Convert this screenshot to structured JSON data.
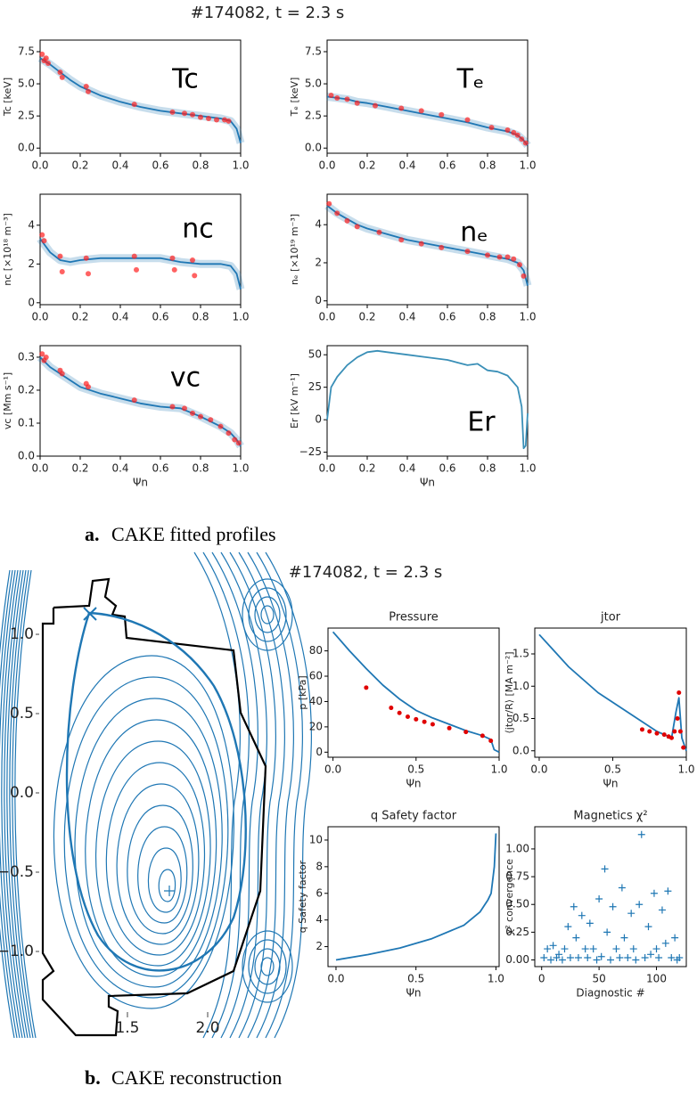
{
  "panels": [
    {
      "title": "#174082, t = 2.3 s",
      "label": "a.",
      "caption": "CAKE fitted profiles"
    },
    {
      "title": "#174082, t = 2.3 s",
      "label": "b.",
      "caption": "CAKE reconstruction"
    }
  ],
  "chart_data": [
    {
      "type": "line",
      "ylabel": "Tc [keV]",
      "annotation": "Tc",
      "xlim": [
        0,
        1
      ],
      "ylim": [
        -0.4,
        8.4
      ],
      "xticks": [
        {
          "value": 0,
          "label": "0.0"
        },
        0.2,
        0.4,
        0.6,
        0.8,
        {
          "value": 1,
          "label": "1.0"
        }
      ],
      "yticks": [
        {
          "value": 0,
          "label": "0.0"
        },
        2.5,
        {
          "value": 5,
          "label": "5.0"
        },
        7.5
      ],
      "series": [
        {
          "mode": "line",
          "color": "#1f77b4",
          "x": [
            0,
            0.05,
            0.1,
            0.15,
            0.2,
            0.3,
            0.4,
            0.5,
            0.6,
            0.7,
            0.8,
            0.9,
            0.95,
            0.98,
            1.0
          ],
          "values": [
            7.0,
            6.5,
            5.9,
            5.3,
            4.8,
            4.1,
            3.6,
            3.2,
            2.9,
            2.7,
            2.5,
            2.3,
            2.1,
            1.5,
            0.4
          ]
        },
        {
          "mode": "markers",
          "color": "#ff2020",
          "x": [
            0.01,
            0.02,
            0.03,
            0.04,
            0.1,
            0.11,
            0.23,
            0.24,
            0.47,
            0.66,
            0.72,
            0.76,
            0.8,
            0.84,
            0.88,
            0.92,
            0.94
          ],
          "values": [
            7.3,
            6.8,
            7.0,
            6.6,
            5.9,
            5.5,
            4.8,
            4.4,
            3.4,
            2.8,
            2.7,
            2.6,
            2.4,
            2.3,
            2.2,
            2.2,
            2.1
          ]
        }
      ]
    },
    {
      "type": "line",
      "ylabel": "Tₑ [keV]",
      "annotation": "Tₑ",
      "xlim": [
        0,
        1
      ],
      "ylim": [
        -0.4,
        8.4
      ],
      "xticks": [
        {
          "value": 0,
          "label": "0.0"
        },
        0.2,
        0.4,
        0.6,
        0.8,
        {
          "value": 1,
          "label": "1.0"
        }
      ],
      "yticks": [
        {
          "value": 0,
          "label": "0.0"
        },
        2.5,
        {
          "value": 5,
          "label": "5.0"
        },
        7.5
      ],
      "series": [
        {
          "mode": "line",
          "color": "#1f77b4",
          "x": [
            0,
            0.05,
            0.1,
            0.15,
            0.2,
            0.3,
            0.4,
            0.5,
            0.6,
            0.7,
            0.8,
            0.9,
            0.95,
            0.98,
            1.0
          ],
          "values": [
            4.0,
            3.9,
            3.8,
            3.6,
            3.5,
            3.2,
            2.9,
            2.6,
            2.3,
            2.0,
            1.6,
            1.3,
            1.0,
            0.6,
            0.2
          ]
        },
        {
          "mode": "markers",
          "color": "#ff2020",
          "x": [
            0.02,
            0.05,
            0.1,
            0.15,
            0.24,
            0.37,
            0.47,
            0.57,
            0.7,
            0.82,
            0.9,
            0.93,
            0.95,
            0.97,
            0.99
          ],
          "values": [
            4.1,
            3.9,
            3.8,
            3.5,
            3.3,
            3.1,
            2.9,
            2.6,
            2.2,
            1.6,
            1.4,
            1.2,
            1.0,
            0.7,
            0.4
          ]
        }
      ]
    },
    {
      "type": "line",
      "ylabel": "nc [×10¹⁸ m⁻³]",
      "annotation": "nc",
      "xlim": [
        0,
        1
      ],
      "ylim": [
        -0.1,
        5.6
      ],
      "xticks": [
        {
          "value": 0,
          "label": "0.0"
        },
        0.2,
        0.4,
        0.6,
        0.8,
        {
          "value": 1,
          "label": "1.0"
        }
      ],
      "yticks": [
        0,
        2,
        4
      ],
      "series": [
        {
          "mode": "line",
          "color": "#1f77b4",
          "x": [
            0,
            0.05,
            0.1,
            0.15,
            0.2,
            0.3,
            0.4,
            0.5,
            0.6,
            0.7,
            0.8,
            0.9,
            0.95,
            0.98,
            1.0
          ],
          "values": [
            3.3,
            2.6,
            2.2,
            2.1,
            2.2,
            2.3,
            2.3,
            2.3,
            2.3,
            2.1,
            2.0,
            2.0,
            1.9,
            1.5,
            0.7
          ]
        },
        {
          "mode": "markers",
          "color": "#ff2020",
          "x": [
            0.01,
            0.02,
            0.1,
            0.11,
            0.23,
            0.24,
            0.47,
            0.48,
            0.66,
            0.67,
            0.76,
            0.77
          ],
          "values": [
            3.5,
            3.2,
            2.4,
            1.6,
            2.3,
            1.5,
            2.4,
            1.7,
            2.3,
            1.7,
            2.2,
            1.4
          ]
        }
      ]
    },
    {
      "type": "line",
      "ylabel": "nₑ [×10¹⁹ m⁻³]",
      "annotation": "nₑ",
      "xlim": [
        0,
        1
      ],
      "ylim": [
        -0.2,
        5.6
      ],
      "xticks": [
        {
          "value": 0,
          "label": "0.0"
        },
        0.2,
        0.4,
        0.6,
        0.8,
        {
          "value": 1,
          "label": "1.0"
        }
      ],
      "yticks": [
        0,
        2,
        4
      ],
      "series": [
        {
          "mode": "line",
          "color": "#1f77b4",
          "x": [
            0,
            0.05,
            0.1,
            0.15,
            0.2,
            0.3,
            0.4,
            0.5,
            0.6,
            0.7,
            0.8,
            0.9,
            0.95,
            0.98,
            1.0
          ],
          "values": [
            5.0,
            4.6,
            4.3,
            4.0,
            3.8,
            3.5,
            3.2,
            3.0,
            2.8,
            2.6,
            2.4,
            2.2,
            2.0,
            1.6,
            0.8
          ]
        },
        {
          "mode": "markers",
          "color": "#ff2020",
          "x": [
            0.01,
            0.05,
            0.1,
            0.15,
            0.26,
            0.37,
            0.47,
            0.57,
            0.7,
            0.8,
            0.86,
            0.9,
            0.93,
            0.96,
            0.98
          ],
          "values": [
            5.1,
            4.6,
            4.2,
            3.9,
            3.6,
            3.2,
            3.0,
            2.8,
            2.6,
            2.4,
            2.3,
            2.3,
            2.2,
            1.9,
            1.3
          ]
        }
      ]
    },
    {
      "type": "line",
      "ylabel": "vc [Mm s⁻¹]",
      "annotation": "vc",
      "xlabel": "Ψn",
      "xlim": [
        0,
        1
      ],
      "ylim": [
        0,
        0.335
      ],
      "xticks": [
        {
          "value": 0,
          "label": "0.0"
        },
        0.2,
        0.4,
        0.6,
        0.8,
        {
          "value": 1,
          "label": "1.0"
        }
      ],
      "yticks": [
        {
          "value": 0,
          "label": "0.0"
        },
        0.1,
        0.2,
        0.3
      ],
      "series": [
        {
          "mode": "line",
          "color": "#1f77b4",
          "x": [
            0,
            0.05,
            0.1,
            0.15,
            0.2,
            0.3,
            0.4,
            0.5,
            0.6,
            0.7,
            0.8,
            0.9,
            0.95,
            0.98,
            1.0
          ],
          "values": [
            0.3,
            0.27,
            0.25,
            0.23,
            0.21,
            0.19,
            0.175,
            0.16,
            0.15,
            0.145,
            0.12,
            0.09,
            0.07,
            0.05,
            0.03
          ]
        },
        {
          "mode": "markers",
          "color": "#ff2020",
          "x": [
            0.01,
            0.02,
            0.03,
            0.1,
            0.11,
            0.23,
            0.24,
            0.47,
            0.66,
            0.72,
            0.76,
            0.8,
            0.85,
            0.9,
            0.94,
            0.97,
            0.99
          ],
          "values": [
            0.31,
            0.29,
            0.3,
            0.26,
            0.25,
            0.22,
            0.21,
            0.17,
            0.15,
            0.145,
            0.13,
            0.12,
            0.11,
            0.09,
            0.07,
            0.05,
            0.04
          ]
        }
      ]
    },
    {
      "type": "line",
      "ylabel": "Er [kV m⁻¹]",
      "annotation": "Er",
      "xlabel": "Ψn",
      "xlim": [
        0,
        1
      ],
      "ylim": [
        -28,
        57
      ],
      "xticks": [
        {
          "value": 0,
          "label": "0.0"
        },
        0.2,
        0.4,
        0.6,
        0.8,
        {
          "value": 1,
          "label": "1.0"
        }
      ],
      "yticks": [
        {
          "value": -25,
          "label": "−25"
        },
        0,
        25,
        50
      ],
      "series": [
        {
          "mode": "line",
          "color": "#3a8fb7",
          "x": [
            0,
            0.02,
            0.05,
            0.1,
            0.15,
            0.2,
            0.25,
            0.3,
            0.4,
            0.5,
            0.6,
            0.65,
            0.7,
            0.75,
            0.8,
            0.85,
            0.9,
            0.95,
            0.97,
            0.98,
            0.99,
            1.0
          ],
          "values": [
            0,
            25,
            33,
            42,
            48,
            52,
            53,
            52,
            50,
            48,
            46,
            44,
            42,
            43,
            38,
            37,
            34,
            25,
            10,
            -22,
            -20,
            5
          ]
        }
      ]
    },
    {
      "type": "line",
      "title": "Pressure",
      "ylabel": "p [kPa]",
      "xlabel": "Ψn",
      "xlim": [
        -0.03,
        1.0
      ],
      "ylim": [
        -4,
        98
      ],
      "xticks": [
        {
          "value": 0,
          "label": "0.0"
        },
        0.5,
        {
          "value": 1,
          "label": "1.0"
        }
      ],
      "yticks": [
        0,
        20,
        40,
        60,
        80
      ],
      "series": [
        {
          "mode": "line",
          "color": "#1f77b4",
          "x": [
            0,
            0.1,
            0.2,
            0.3,
            0.4,
            0.5,
            0.6,
            0.7,
            0.8,
            0.9,
            0.95,
            0.97,
            1.0
          ],
          "values": [
            95,
            80,
            66,
            53,
            42,
            33,
            27,
            22,
            17,
            13,
            10,
            2,
            0
          ]
        },
        {
          "mode": "markers",
          "color": "#e00000",
          "x": [
            0.2,
            0.35,
            0.4,
            0.45,
            0.5,
            0.55,
            0.6,
            0.7,
            0.8,
            0.9,
            0.95
          ],
          "values": [
            51,
            35,
            31,
            28,
            26,
            24,
            22,
            19,
            16,
            13,
            9
          ]
        }
      ]
    },
    {
      "type": "line",
      "title": "jtor",
      "ylabel": "⟨jtor/R⟩ [MA m⁻²]",
      "xlabel": "Ψn",
      "xlim": [
        -0.03,
        1.0
      ],
      "ylim": [
        -0.1,
        1.9
      ],
      "xticks": [
        {
          "value": 0,
          "label": "0.0"
        },
        0.5,
        {
          "value": 1,
          "label": "1.0"
        }
      ],
      "yticks": [
        {
          "value": 0,
          "label": "0.0"
        },
        0.5,
        {
          "value": 1,
          "label": "1.0"
        },
        1.5
      ],
      "series": [
        {
          "mode": "line",
          "color": "#1f77b4",
          "x": [
            0,
            0.1,
            0.2,
            0.3,
            0.4,
            0.5,
            0.6,
            0.7,
            0.8,
            0.85,
            0.9,
            0.93,
            0.95,
            0.97,
            1.0
          ],
          "values": [
            1.8,
            1.55,
            1.3,
            1.1,
            0.9,
            0.75,
            0.6,
            0.45,
            0.3,
            0.25,
            0.2,
            0.6,
            0.82,
            0.2,
            0.0
          ]
        },
        {
          "mode": "markers",
          "color": "#e00000",
          "x": [
            0.7,
            0.75,
            0.8,
            0.85,
            0.88,
            0.9,
            0.92,
            0.94,
            0.95,
            0.96,
            0.98
          ],
          "values": [
            0.33,
            0.3,
            0.27,
            0.25,
            0.22,
            0.2,
            0.3,
            0.5,
            0.9,
            0.3,
            0.05
          ]
        }
      ]
    },
    {
      "type": "line",
      "title": "q Safety factor",
      "ylabel": "q Safety factor",
      "xlabel": "Ψn",
      "xlim": [
        -0.05,
        1.02
      ],
      "ylim": [
        0.5,
        11
      ],
      "xticks": [
        {
          "value": 0,
          "label": "0.0"
        },
        0.5,
        {
          "value": 1,
          "label": "1.0"
        }
      ],
      "yticks": [
        2,
        4,
        6,
        8,
        10
      ],
      "series": [
        {
          "mode": "line",
          "color": "#1f77b4",
          "x": [
            0,
            0.2,
            0.4,
            0.6,
            0.8,
            0.9,
            0.95,
            0.97,
            0.99,
            1.0
          ],
          "values": [
            1.0,
            1.4,
            1.9,
            2.6,
            3.6,
            4.6,
            5.5,
            6.0,
            8.0,
            10.5
          ]
        }
      ]
    },
    {
      "type": "scatter",
      "title": "Magnetics χ²",
      "ylabel": "χ² convergence",
      "xlabel": "Diagnostic #",
      "xlim": [
        -6,
        126
      ],
      "ylim": [
        -0.06,
        1.2
      ],
      "xticks": [
        0,
        50,
        100
      ],
      "yticks": [
        {
          "value": 0,
          "label": "0.00"
        },
        0.25,
        {
          "value": 0.5,
          "label": "0.50"
        },
        0.75,
        {
          "value": 1,
          "label": "1.00"
        }
      ],
      "series": [
        {
          "mode": "plus",
          "color": "#1f77b4",
          "x": [
            2,
            5,
            8,
            10,
            13,
            15,
            18,
            20,
            23,
            25,
            28,
            30,
            32,
            35,
            38,
            40,
            42,
            45,
            48,
            50,
            52,
            55,
            57,
            60,
            62,
            65,
            68,
            70,
            72,
            75,
            78,
            80,
            82,
            85,
            87,
            90,
            93,
            95,
            98,
            100,
            102,
            105,
            108,
            110,
            113,
            116,
            118,
            120
          ],
          "values": [
            0.02,
            0.1,
            0.0,
            0.13,
            0.02,
            0.05,
            0.0,
            0.1,
            0.3,
            0.02,
            0.48,
            0.2,
            0.02,
            0.4,
            0.1,
            0.02,
            0.33,
            0.1,
            0.0,
            0.55,
            0.03,
            0.82,
            0.25,
            0.0,
            0.48,
            0.1,
            0.02,
            0.65,
            0.2,
            0.02,
            0.42,
            0.1,
            0.0,
            0.5,
            1.13,
            0.02,
            0.3,
            0.05,
            0.6,
            0.1,
            0.02,
            0.45,
            0.15,
            0.62,
            0.02,
            0.2,
            0.0,
            0.02
          ]
        }
      ]
    },
    {
      "type": "contour",
      "xlim": [
        0.706,
        2.372
      ],
      "ylim": [
        -1.545,
        1.517
      ],
      "xticks": [
        1.5,
        {
          "value": 2,
          "label": "2.0"
        }
      ],
      "yticks": [
        {
          "value": 1,
          "label": "1.0"
        },
        0.5,
        {
          "value": 0,
          "label": "0.0"
        },
        {
          "value": -0.5,
          "label": "−0.5"
        },
        {
          "value": -1,
          "label": "−1.0"
        }
      ]
    }
  ]
}
